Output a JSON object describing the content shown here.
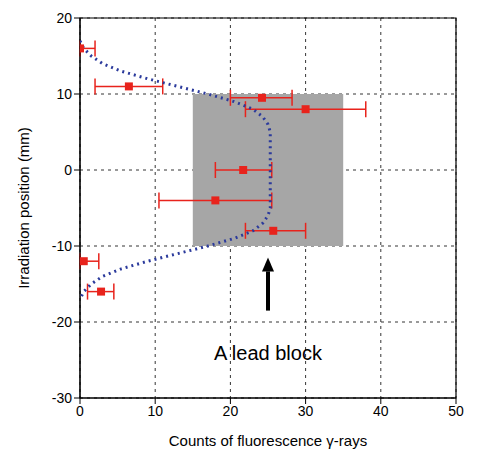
{
  "chart_data": {
    "type": "scatter",
    "x_label": "Counts of fluorescence γ-rays",
    "y_label": "Irradiation position (mm)",
    "xlim": [
      0,
      50
    ],
    "xticks": [
      0,
      10,
      20,
      30,
      40,
      50
    ],
    "ylim": [
      -30,
      20
    ],
    "yticks": [
      -30,
      -20,
      -10,
      0,
      10,
      20
    ],
    "grid": true,
    "points": {
      "x": [
        0,
        6.5,
        24.2,
        30,
        21.7,
        18,
        25.7,
        0.5,
        2.8
      ],
      "y": [
        16,
        11,
        9.5,
        8,
        0,
        -4,
        -8,
        -12,
        -16
      ],
      "xerr": [
        [
          0,
          2
        ],
        [
          4.5,
          4.5
        ],
        [
          4.2,
          4
        ],
        [
          8,
          8
        ],
        [
          3.7,
          3.8
        ],
        [
          7.5,
          7.5
        ],
        [
          3.7,
          4.3
        ],
        [
          0.5,
          2
        ],
        [
          1.8,
          1.7
        ]
      ],
      "color": "#e8231c",
      "marker": "square"
    },
    "fit": {
      "x": [
        0,
        0.5,
        1.5,
        3,
        5.5,
        9,
        13,
        17,
        20.5,
        23,
        24.3,
        25,
        25.3,
        25.3,
        25,
        24.3,
        23,
        20.5,
        17,
        13,
        9,
        5.5,
        3,
        1.5,
        0.5,
        0
      ],
      "y": [
        17,
        16,
        15,
        14,
        13,
        12,
        11,
        10,
        9,
        8,
        7,
        6,
        5,
        -5,
        -6,
        -7,
        -8,
        -9,
        -10,
        -11,
        -12,
        -13,
        -14,
        -15,
        -16,
        -17
      ],
      "color": "#2b3a9c",
      "line_style": "dotted"
    },
    "lead_block": {
      "x": [
        15,
        35
      ],
      "y": [
        -10,
        10
      ],
      "color": "#a6a6a6"
    },
    "arrow": {
      "x": 25,
      "y": [
        -18.5,
        -11.5
      ],
      "color": "#000000"
    },
    "annotation": {
      "text": "A lead block",
      "x": 25,
      "y": -24
    }
  }
}
